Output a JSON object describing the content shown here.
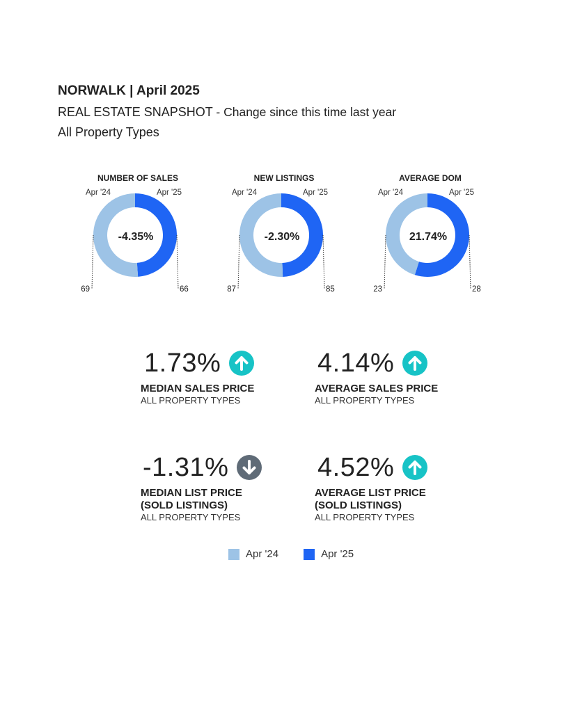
{
  "header": {
    "title": "NORWALK | April 2025",
    "subtitle_main": "REAL ESTATE SNAPSHOT",
    "subtitle_rest": "- Change since this time last year",
    "property_types": "All Property Types"
  },
  "colors": {
    "prev": "#9dc3e6",
    "curr": "#1f65f4",
    "up": "#17c3c6",
    "down": "#5f6b77"
  },
  "chart_data": [
    {
      "type": "pie",
      "title": "NUMBER OF SALES",
      "categories": [
        "Apr '24",
        "Apr '25"
      ],
      "values": [
        69,
        66
      ],
      "center_label": "-4.35%"
    },
    {
      "type": "pie",
      "title": "NEW LISTINGS",
      "categories": [
        "Apr '24",
        "Apr '25"
      ],
      "values": [
        87,
        85
      ],
      "center_label": "-2.30%"
    },
    {
      "type": "pie",
      "title": "AVERAGE DOM",
      "categories": [
        "Apr '24",
        "Apr '25"
      ],
      "values": [
        23,
        28
      ],
      "center_label": "21.74%"
    }
  ],
  "metrics": [
    {
      "value": "1.73%",
      "direction": "up",
      "icon": "arrow-up-circle-icon",
      "label_lines": [
        "MEDIAN SALES PRICE"
      ],
      "sub": "ALL PROPERTY TYPES"
    },
    {
      "value": "4.14%",
      "direction": "up",
      "icon": "arrow-up-circle-icon",
      "label_lines": [
        "AVERAGE SALES PRICE"
      ],
      "sub": "ALL PROPERTY TYPES"
    },
    {
      "value": "-1.31%",
      "direction": "down",
      "icon": "arrow-down-circle-icon",
      "label_lines": [
        "MEDIAN LIST PRICE",
        "(SOLD LISTINGS)"
      ],
      "sub": "ALL PROPERTY TYPES"
    },
    {
      "value": "4.52%",
      "direction": "up",
      "icon": "arrow-up-circle-icon",
      "label_lines": [
        "AVERAGE LIST PRICE",
        "(SOLD LISTINGS)"
      ],
      "sub": "ALL PROPERTY TYPES"
    }
  ],
  "legend": [
    {
      "label": "Apr '24"
    },
    {
      "label": "Apr '25"
    }
  ]
}
